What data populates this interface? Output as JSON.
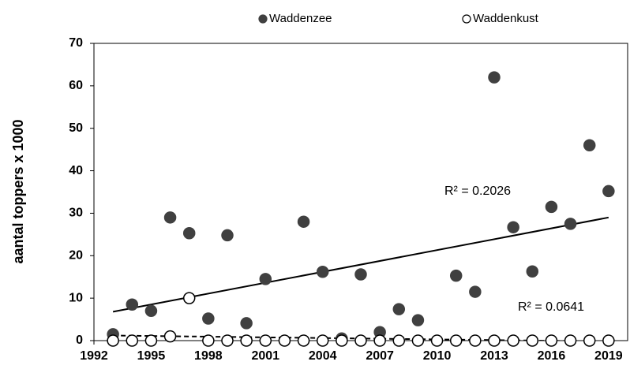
{
  "chart_data": {
    "type": "scatter",
    "y_label": "aantal toppers x 1000",
    "x": [
      1993,
      1994,
      1995,
      1996,
      1997,
      1998,
      1999,
      2000,
      2001,
      2002,
      2003,
      2004,
      2005,
      2006,
      2007,
      2008,
      2009,
      2010,
      2011,
      2012,
      2013,
      2014,
      2015,
      2016,
      2017,
      2018,
      2019
    ],
    "series": [
      {
        "name": "Waddenzee",
        "color": "#404040",
        "filled": true,
        "values": [
          1.5,
          8.5,
          7,
          29,
          25.3,
          5.2,
          24.8,
          4.1,
          14.5,
          null,
          28,
          16.2,
          0.5,
          15.6,
          2,
          7.4,
          4.8,
          null,
          15.3,
          11.5,
          62,
          26.7,
          16.3,
          31.5,
          27.5,
          46,
          35.2
        ]
      },
      {
        "name": "Waddenkust",
        "color": "#000000",
        "filled": false,
        "values": [
          0,
          0,
          0,
          1,
          10,
          0,
          0,
          0,
          0,
          0,
          0,
          0,
          0,
          0,
          0,
          0,
          0,
          0,
          0,
          0,
          0,
          0,
          0,
          0,
          0,
          0,
          0
        ]
      }
    ],
    "trendlines": [
      {
        "x": [
          1993,
          2019
        ],
        "values": [
          6.8,
          29
        ],
        "dashed": false,
        "label": "R² = 0.2026"
      },
      {
        "x": [
          1993,
          2019
        ],
        "values": [
          1.2,
          -0.2
        ],
        "dashed": true,
        "label": "R² = 0.0641"
      }
    ],
    "xlim": [
      1992,
      2020
    ],
    "xticks": [
      1992,
      1995,
      1998,
      2001,
      2004,
      2007,
      2010,
      2013,
      2016,
      2019
    ],
    "ylim": [
      0,
      70
    ],
    "yticks": [
      0,
      10,
      20,
      30,
      40,
      50,
      60,
      70
    ],
    "legend": "top"
  }
}
